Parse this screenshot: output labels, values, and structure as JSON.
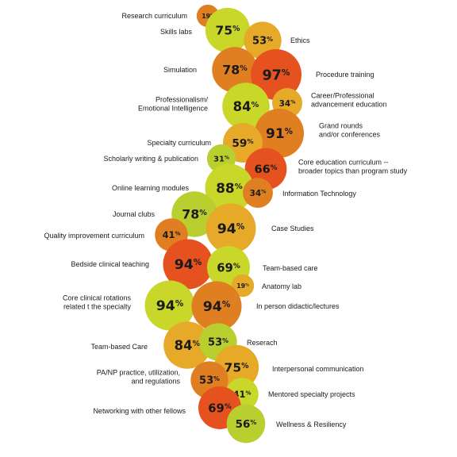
{
  "chart_data": {
    "type": "bubble",
    "value_unit": "%",
    "colors": {
      "high": "#e5521f",
      "orange": "#e07e22",
      "amber": "#e6a928",
      "lime": "#c9d62a",
      "green": "#b8cf2f"
    },
    "items": [
      {
        "label": "Research curriculum",
        "value": 19,
        "color": "#e07e22"
      },
      {
        "label": "Skills labs",
        "value": 75,
        "color": "#c9d62a"
      },
      {
        "label": "Ethics",
        "value": 53,
        "color": "#e6a928"
      },
      {
        "label": "Simulation",
        "value": 78,
        "color": "#e07e22"
      },
      {
        "label": "Procedure training",
        "value": 97,
        "color": "#e5521f"
      },
      {
        "label": "Professionalism/\nEmotional Intelligence",
        "value": 84,
        "color": "#c9d62a"
      },
      {
        "label": "Career/Professional\nadvancement education",
        "value": 34,
        "color": "#e6a928"
      },
      {
        "label": "Grand rounds\nand/or conferences",
        "value": 91,
        "color": "#e07e22"
      },
      {
        "label": "Specialty curriculum",
        "value": 59,
        "color": "#e6a928"
      },
      {
        "label": "Scholarly writing & publication",
        "value": 31,
        "color": "#b8cf2f"
      },
      {
        "label": "Core education curriculum --\nbroader topics than program study",
        "value": 66,
        "color": "#e5521f"
      },
      {
        "label": "Online learning modules",
        "value": 88,
        "color": "#c9d62a"
      },
      {
        "label": "Information Technology",
        "value": 34,
        "color": "#e07e22"
      },
      {
        "label": "Journal clubs",
        "value": 78,
        "color": "#b8cf2f"
      },
      {
        "label": "Case Studies",
        "value": 94,
        "color": "#e6a928"
      },
      {
        "label": "Quality improvement curriculum",
        "value": 41,
        "color": "#e07e22"
      },
      {
        "label": "Bedside clinical teaching",
        "value": 94,
        "color": "#e5521f"
      },
      {
        "label": "Team-based care",
        "value": 69,
        "color": "#c9d62a"
      },
      {
        "label": "Anatomy lab",
        "value": 19,
        "color": "#e6a928"
      },
      {
        "label": "Core clinical rotations\nrelated t the specialty",
        "value": 94,
        "color": "#c9d62a"
      },
      {
        "label": "In person didactic/lectures",
        "value": 94,
        "color": "#e07e22"
      },
      {
        "label": "Team-based Care",
        "value": 84,
        "color": "#e6a928"
      },
      {
        "label": "Reserach",
        "value": 53,
        "color": "#b8cf2f"
      },
      {
        "label": "Interpersonal communication",
        "value": 75,
        "color": "#e6a928"
      },
      {
        "label": "PA/NP practice, utilization,\nand regulations",
        "value": 53,
        "color": "#e07e22"
      },
      {
        "label": "Mentored specialty projects",
        "value": 41,
        "color": "#c9d62a"
      },
      {
        "label": "Networking with other fellows",
        "value": 69,
        "color": "#e5521f"
      },
      {
        "label": "Wellness & Resiliency",
        "value": 56,
        "color": "#b8cf2f"
      }
    ]
  }
}
